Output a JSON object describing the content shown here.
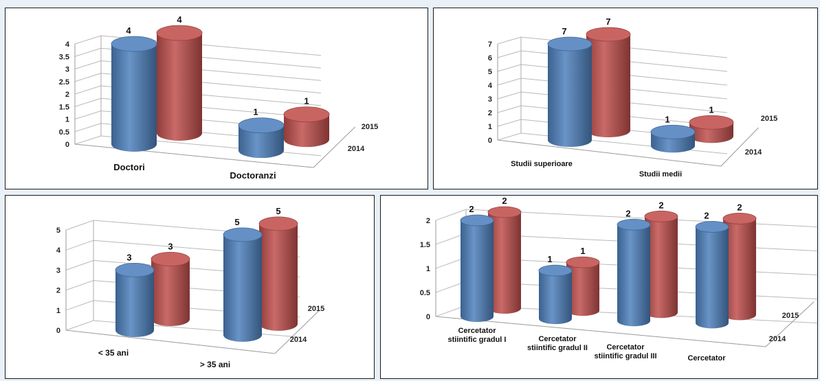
{
  "colors": {
    "series_2014": "#4f81bd",
    "series_2015": "#c0504d",
    "grid": "#b8b8b8"
  },
  "chart_data": [
    {
      "type": "bar",
      "style": "3d-cylinder",
      "categories": [
        "Doctori",
        "Doctoranzi"
      ],
      "series": [
        {
          "name": "2014",
          "values": [
            4,
            1
          ]
        },
        {
          "name": "2015",
          "values": [
            4,
            1
          ]
        }
      ],
      "yticks": [
        "0",
        "0.5",
        "1",
        "1.5",
        "2",
        "2.5",
        "3",
        "3.5",
        "4"
      ],
      "ylim": [
        0,
        4
      ],
      "grid": true
    },
    {
      "type": "bar",
      "style": "3d-cylinder",
      "categories": [
        "Studii superioare",
        "Studii medii"
      ],
      "series": [
        {
          "name": "2014",
          "values": [
            7,
            1
          ]
        },
        {
          "name": "2015",
          "values": [
            7,
            1
          ]
        }
      ],
      "yticks": [
        "0",
        "1",
        "2",
        "3",
        "4",
        "5",
        "6",
        "7"
      ],
      "ylim": [
        0,
        7
      ],
      "grid": true
    },
    {
      "type": "bar",
      "style": "3d-cylinder",
      "categories": [
        "< 35  ani",
        "> 35 ani"
      ],
      "series": [
        {
          "name": "2014",
          "values": [
            3,
            5
          ]
        },
        {
          "name": "2015",
          "values": [
            3,
            5
          ]
        }
      ],
      "yticks": [
        "0",
        "1",
        "2",
        "3",
        "4",
        "5"
      ],
      "ylim": [
        0,
        5
      ],
      "grid": true
    },
    {
      "type": "bar",
      "style": "3d-cylinder",
      "categories": [
        "Cercetator stiintific gradul I",
        "Cercetator stiintific gradul II",
        "Cercetator stiintific gradul III",
        "Cercetator"
      ],
      "series": [
        {
          "name": "2014",
          "values": [
            2,
            1,
            2,
            2
          ]
        },
        {
          "name": "2015",
          "values": [
            2,
            1,
            2,
            2
          ]
        }
      ],
      "yticks": [
        "0",
        "0.5",
        "1",
        "1.5",
        "2"
      ],
      "ylim": [
        0,
        2
      ],
      "grid": true
    }
  ]
}
